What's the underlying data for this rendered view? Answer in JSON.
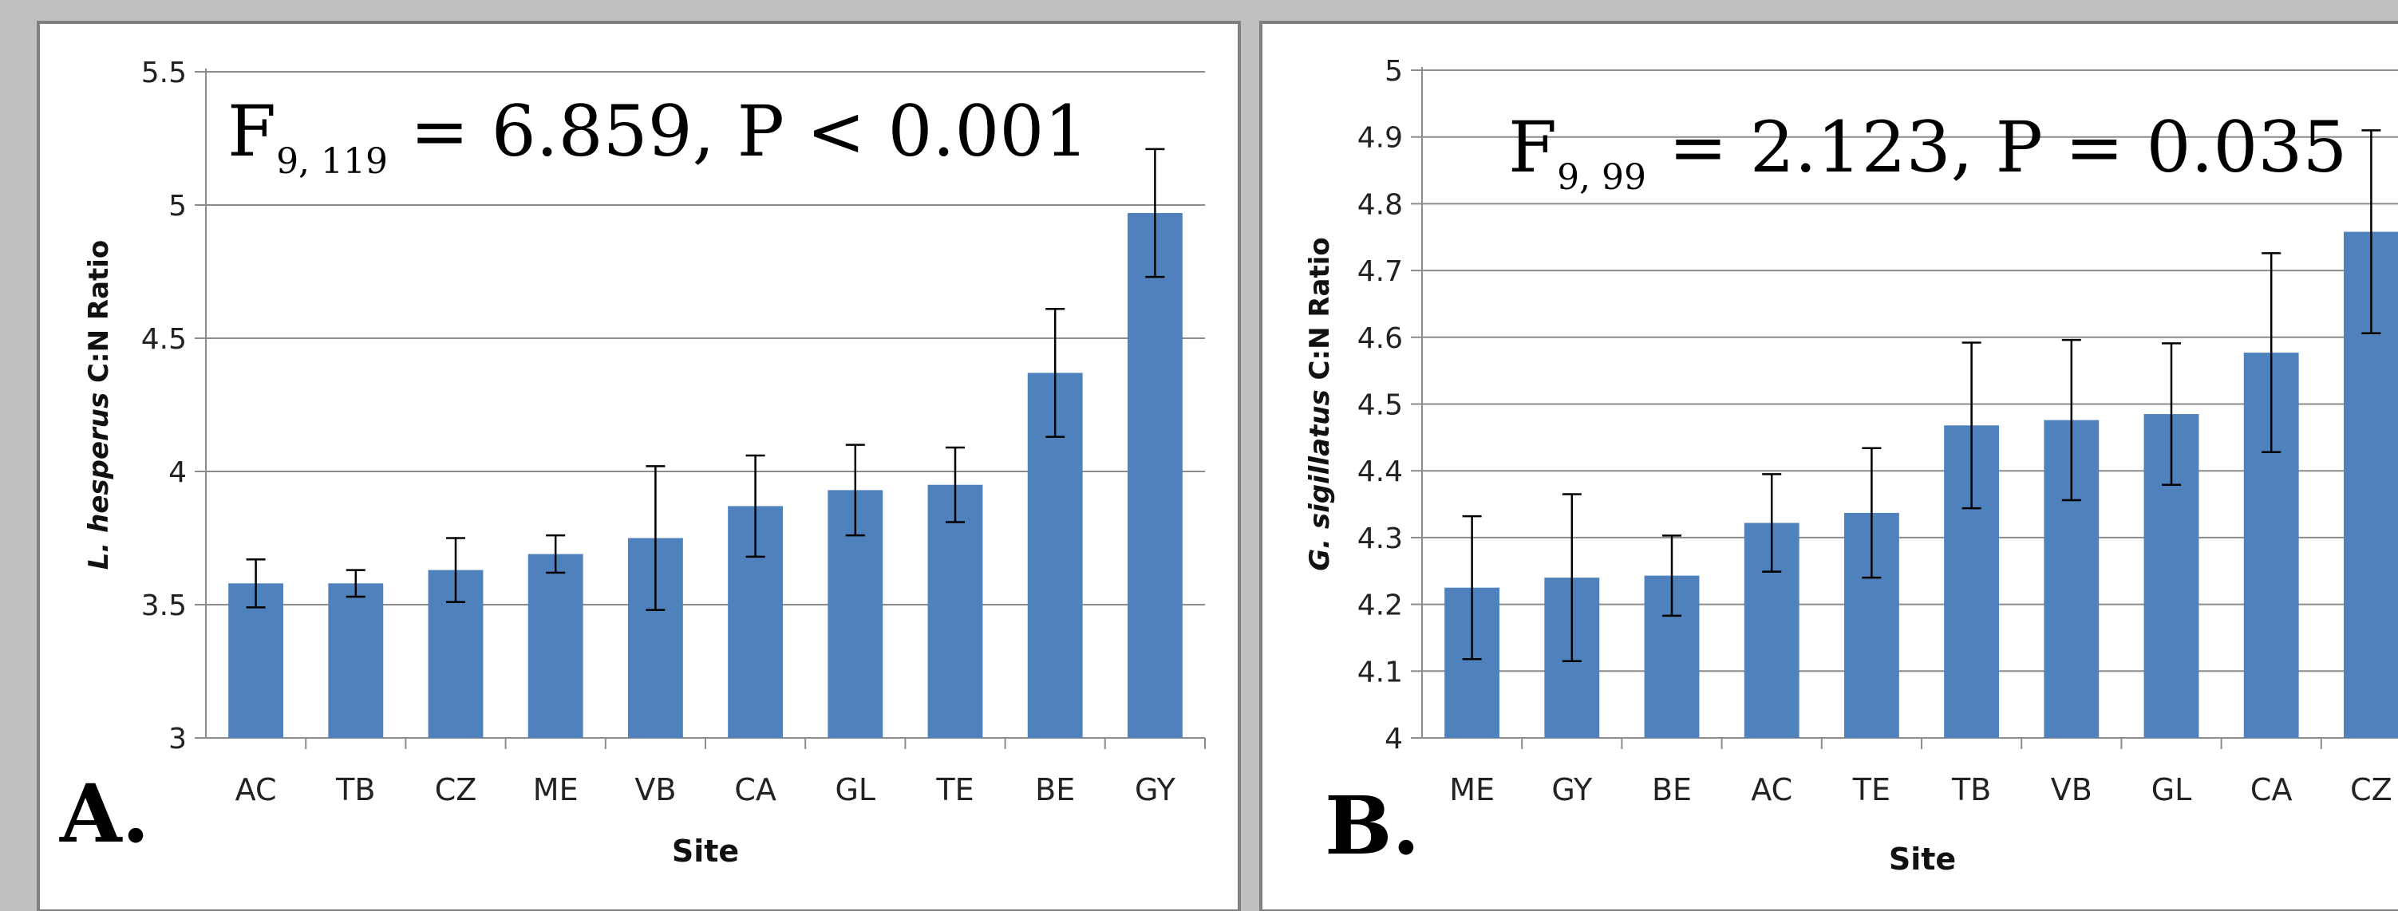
{
  "chart_data": [
    {
      "type": "bar",
      "panel_label": "A.",
      "stat_prefix": "F",
      "stat_subscript": "9, 119",
      "stat_rest": " = 6.859, P < 0.001",
      "ylabel_italic": "L. hesperus",
      "ylabel_rest": " C:N Ratio",
      "xlabel": "Site",
      "ylim": [
        3,
        5.5
      ],
      "yticks": [
        "3",
        "3.5",
        "4",
        "4.5",
        "5",
        "5.5"
      ],
      "grid": true,
      "categories": [
        "AC",
        "TB",
        "CZ",
        "ME",
        "VB",
        "CA",
        "GL",
        "TE",
        "BE",
        "GY"
      ],
      "values": [
        3.58,
        3.58,
        3.63,
        3.69,
        3.75,
        3.87,
        3.93,
        3.95,
        4.37,
        4.97
      ],
      "error": [
        0.09,
        0.05,
        0.12,
        0.07,
        0.27,
        0.19,
        0.17,
        0.14,
        0.24,
        0.24
      ],
      "bar_color": "#4f81bd"
    },
    {
      "type": "bar",
      "panel_label": "B.",
      "stat_prefix": "F",
      "stat_subscript": "9, 99",
      "stat_rest": " = 2.123, P = 0.035",
      "ylabel_italic": "G. sigillatus",
      "ylabel_rest": " C:N Ratio",
      "xlabel": "Site",
      "ylim": [
        4,
        5
      ],
      "yticks": [
        "4",
        "4.1",
        "4.2",
        "4.3",
        "4.4",
        "4.5",
        "4.6",
        "4.7",
        "4.8",
        "4.9",
        "5"
      ],
      "grid": true,
      "categories": [
        "ME",
        "GY",
        "BE",
        "AC",
        "TE",
        "TB",
        "VB",
        "GL",
        "CA",
        "CZ"
      ],
      "values": [
        4.225,
        4.24,
        4.243,
        4.322,
        4.337,
        4.468,
        4.476,
        4.485,
        4.577,
        4.758
      ],
      "error": [
        0.107,
        0.125,
        0.06,
        0.073,
        0.097,
        0.124,
        0.12,
        0.106,
        0.149,
        0.152
      ],
      "bar_color": "#4f81bd"
    }
  ]
}
